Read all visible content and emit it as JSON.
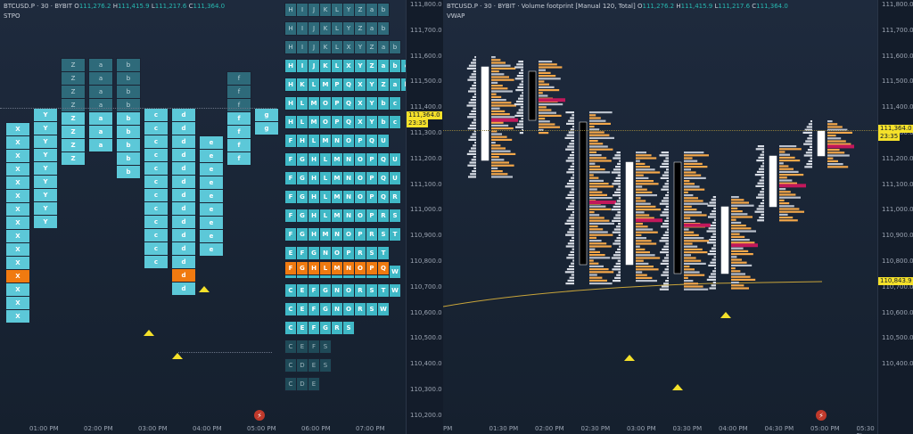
{
  "left_chart": {
    "symbol": "BTCUSD.P · 30 · BYBIT",
    "open_label": "O",
    "open": "111,276.2",
    "high_label": "H",
    "high": "111,415.9",
    "low_label": "L",
    "low": "111,217.6",
    "close_label": "C",
    "close": "111,364.0",
    "indicator": "STPO"
  },
  "right_chart": {
    "symbol": "BTCUSD.P · 30 · BYBIT · Volume footprint [Manual 120, Total]",
    "open_label": "O",
    "open": "111,276.2",
    "high_label": "H",
    "high": "111,415.9",
    "low_label": "L",
    "low": "111,217.6",
    "close_label": "C",
    "close": "111,364.0",
    "indicator": "VWAP"
  },
  "left_axis": {
    "ticks": [
      "111,800.0",
      "111,700.0",
      "111,600.0",
      "111,500.0",
      "111,400.0",
      "111,300.0",
      "111,200.0",
      "111,100.0",
      "111,000.0",
      "110,900.0",
      "110,800.0",
      "110,700.0",
      "110,600.0",
      "110,500.0",
      "110,400.0",
      "110,300.0",
      "110,200.0"
    ],
    "price_tag": "111,364.0",
    "countdown": "23:35"
  },
  "right_axis": {
    "ticks": [
      "111,800.0",
      "111,700.0",
      "111,600.0",
      "111,500.0",
      "111,400.0",
      "111,300.0",
      "111,200.0",
      "111,100.0",
      "111,000.0",
      "110,900.0",
      "110,800.0",
      "110,700.0",
      "110,600.0",
      "110,500.0",
      "110,400.0"
    ],
    "price_tag": "111,364.0",
    "countdown": "23:35",
    "vwap_tag": "110,843.9"
  },
  "left_time_axis": [
    "01:00 PM",
    "02:00 PM",
    "03:00 PM",
    "04:00 PM",
    "05:00 PM",
    "06:00 PM",
    "07:00 PM"
  ],
  "right_time_axis": [
    "PM",
    "01:30 PM",
    "02:00 PM",
    "02:30 PM",
    "03:00 PM",
    "03:30 PM",
    "04:00 PM",
    "04:30 PM",
    "05:00 PM",
    "05:30 PI"
  ],
  "colors": {
    "accent_yellow": "#f5e12a",
    "poc_orange": "#f07a10",
    "tpo_cyan": "#5cc8d8",
    "footprint_orange": "#f5a84a",
    "footprint_grey": "#b9c0cc",
    "imbalance_red": "#c2185b"
  },
  "tpo_left_columns": [
    {
      "letters": [
        "X",
        "X",
        "X",
        "X",
        "X",
        "X",
        "X",
        "X",
        "X",
        "X",
        "X",
        "X",
        "X",
        "X",
        "X"
      ]
    },
    {
      "letters": [
        "Y",
        "Y",
        "Y",
        "Y",
        "Y",
        "Y",
        "Y",
        "Y",
        "Y"
      ]
    },
    {
      "letters": [
        "Z",
        "Z",
        "Z",
        "Z",
        "Z",
        "Z",
        "Z",
        "Z"
      ]
    },
    {
      "letters": [
        "a",
        "a",
        "a",
        "a",
        "a",
        "a",
        "a"
      ]
    },
    {
      "letters": [
        "b",
        "b",
        "b",
        "b",
        "b",
        "b",
        "b",
        "b",
        "b"
      ]
    },
    {
      "letters": [
        "c",
        "c",
        "c",
        "c",
        "c",
        "c",
        "c",
        "c",
        "c",
        "c",
        "c",
        "c"
      ]
    },
    {
      "letters": [
        "d",
        "d",
        "d",
        "d",
        "d",
        "d",
        "d",
        "d",
        "d",
        "d",
        "d",
        "d",
        "d",
        "d"
      ]
    },
    {
      "letters": [
        "e",
        "e",
        "e",
        "e",
        "e",
        "e",
        "e",
        "e",
        "e"
      ]
    },
    {
      "letters": [
        "f",
        "f",
        "f",
        "f",
        "f",
        "f",
        "f"
      ]
    },
    {
      "letters": [
        "g",
        "g"
      ]
    }
  ],
  "tpo_right_rows": [
    [
      "H",
      "I",
      "J",
      "K",
      "L",
      "Y",
      "Z",
      "a",
      "b"
    ],
    [
      "H",
      "I",
      "J",
      "K",
      "L",
      "Y",
      "Z",
      "a",
      "b"
    ],
    [
      "H",
      "I",
      "J",
      "K",
      "L",
      "X",
      "Y",
      "Z",
      "a",
      "b"
    ],
    [
      "H",
      "I",
      "J",
      "K",
      "L",
      "X",
      "Y",
      "Z",
      "a",
      "b",
      "c"
    ],
    [
      "H",
      "K",
      "L",
      "M",
      "P",
      "Q",
      "X",
      "Y",
      "Z",
      "a",
      "b",
      "c"
    ],
    [
      "H",
      "L",
      "M",
      "O",
      "P",
      "Q",
      "X",
      "Y",
      "b",
      "c"
    ],
    [
      "H",
      "L",
      "M",
      "O",
      "P",
      "Q",
      "X",
      "Y",
      "b",
      "c"
    ],
    [
      "F",
      "H",
      "L",
      "M",
      "N",
      "O",
      "P",
      "Q",
      "U"
    ],
    [
      "F",
      "G",
      "H",
      "L",
      "M",
      "N",
      "O",
      "P",
      "Q",
      "U"
    ],
    [
      "F",
      "G",
      "H",
      "L",
      "M",
      "N",
      "O",
      "P",
      "Q",
      "U"
    ],
    [
      "F",
      "G",
      "H",
      "L",
      "M",
      "N",
      "O",
      "P",
      "Q",
      "R"
    ],
    [
      "F",
      "G",
      "H",
      "L",
      "M",
      "N",
      "O",
      "P",
      "R",
      "S"
    ],
    [
      "F",
      "G",
      "H",
      "M",
      "N",
      "O",
      "P",
      "R",
      "S",
      "T"
    ],
    [
      "E",
      "F",
      "G",
      "N",
      "O",
      "P",
      "R",
      "S",
      "T"
    ],
    [
      "C",
      "E",
      "F",
      "G",
      "N",
      "O",
      "R",
      "S",
      "T",
      "W"
    ],
    [
      "C",
      "E",
      "F",
      "G",
      "N",
      "O",
      "R",
      "S",
      "T",
      "W"
    ],
    [
      "C",
      "E",
      "F",
      "G",
      "N",
      "O",
      "R",
      "S",
      "W"
    ],
    [
      "C",
      "E",
      "F",
      "G",
      "R",
      "S"
    ],
    [
      "C",
      "E",
      "F",
      "S"
    ],
    [
      "C",
      "D",
      "E",
      "S"
    ],
    [
      "C",
      "D",
      "E"
    ]
  ],
  "tpo_right_poc_row": [
    "F",
    "G",
    "H",
    "L",
    "M",
    "N",
    "O",
    "P",
    "Q"
  ]
}
